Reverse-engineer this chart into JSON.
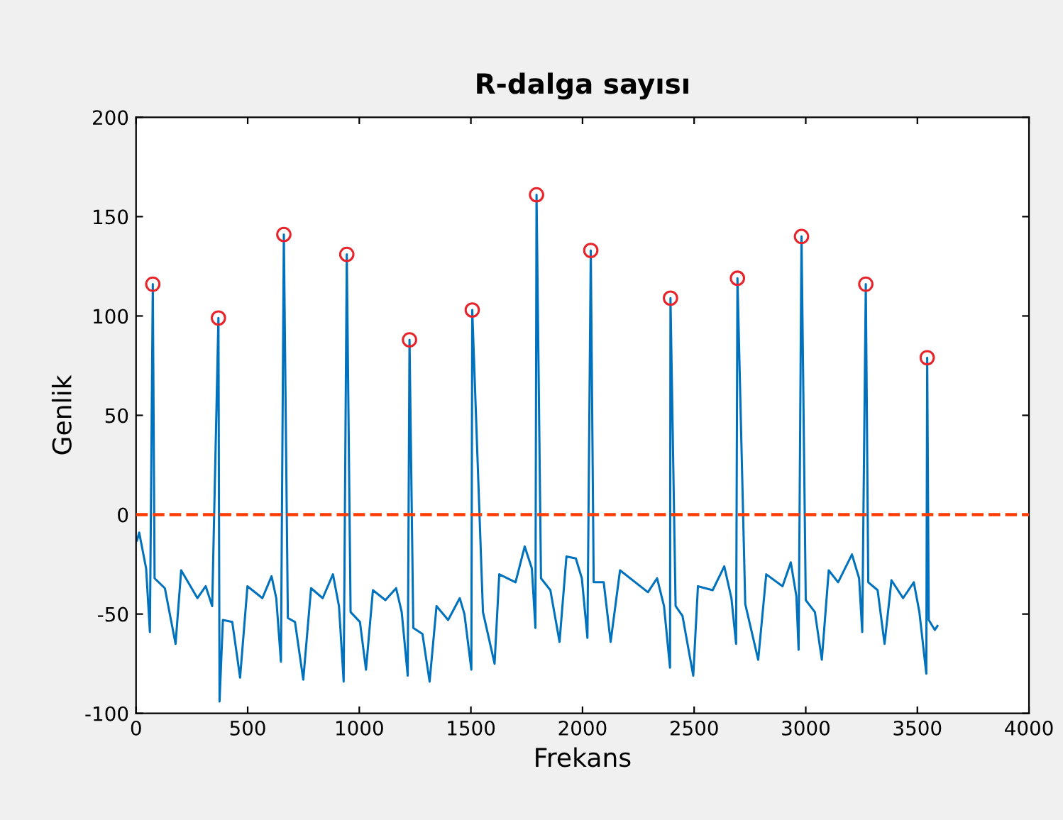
{
  "chart_data": {
    "type": "line",
    "title": "R-dalga sayısı",
    "xlabel": "Frekans",
    "ylabel": "Genlik",
    "xlim": [
      0,
      4000
    ],
    "xticks": [
      0,
      500,
      1000,
      1500,
      2000,
      2500,
      3000,
      3500,
      4000
    ],
    "ylim": [
      -100,
      200
    ],
    "yticks": [
      -100,
      -50,
      0,
      50,
      100,
      150,
      200
    ],
    "grid": false,
    "legend": false,
    "series": [
      {
        "color": "#0072bd",
        "marker": "none",
        "line_style": "solid",
        "x": [
          4,
          14,
          45,
          62,
          75,
          83,
          129,
          177,
          202,
          275,
          312,
          341,
          369,
          374,
          389,
          431,
          466,
          499,
          566,
          607,
          628,
          649,
          662,
          680,
          712,
          749,
          784,
          836,
          882,
          909,
          930,
          944,
          961,
          1003,
          1030,
          1061,
          1117,
          1165,
          1190,
          1217,
          1225,
          1242,
          1283,
          1315,
          1346,
          1398,
          1450,
          1471,
          1502,
          1506,
          1554,
          1606,
          1627,
          1700,
          1741,
          1773,
          1789,
          1794,
          1814,
          1856,
          1897,
          1928,
          1970,
          1997,
          2022,
          2037,
          2050,
          2095,
          2126,
          2168,
          2293,
          2334,
          2365,
          2392,
          2394,
          2417,
          2448,
          2496,
          2517,
          2583,
          2635,
          2667,
          2688,
          2694,
          2729,
          2787,
          2823,
          2896,
          2933,
          2958,
          2968,
          2981,
          3000,
          3041,
          3072,
          3103,
          3145,
          3207,
          3239,
          3253,
          3269,
          3280,
          3322,
          3353,
          3384,
          3436,
          3484,
          3509,
          3540,
          3544,
          3551,
          3578,
          3590
        ],
        "values": [
          -13,
          -9,
          -27,
          -59,
          116,
          -32,
          -37,
          -65,
          -28,
          -42,
          -36,
          -46,
          99,
          -94,
          -53,
          -54,
          -82,
          -36,
          -42,
          -31,
          -42,
          -74,
          141,
          -52,
          -54,
          -83,
          -37,
          -42,
          -30,
          -46,
          -84,
          131,
          -49,
          -54,
          -78,
          -38,
          -43,
          -37,
          -49,
          -81,
          88,
          -57,
          -60,
          -84,
          -46,
          -53,
          -42,
          -50,
          -78,
          103,
          -49,
          -75,
          -30,
          -34,
          -16,
          -27,
          -57,
          161,
          -32,
          -38,
          -64,
          -21,
          -22,
          -32,
          -62,
          133,
          -34,
          -34,
          -64,
          -28,
          -39,
          -32,
          -46,
          -77,
          109,
          -46,
          -51,
          -81,
          -36,
          -38,
          -26,
          -42,
          -65,
          119,
          -45,
          -73,
          -30,
          -36,
          -24,
          -41,
          -68,
          140,
          -43,
          -49,
          -73,
          -28,
          -34,
          -20,
          -32,
          -59,
          116,
          -34,
          -38,
          -65,
          -33,
          -42,
          -34,
          -49,
          -80,
          79,
          -53,
          -58,
          -56
        ]
      },
      {
        "type": "scatter",
        "color": "#e8242b",
        "marker": "circle",
        "x": [
          75,
          369,
          662,
          944,
          1225,
          1506,
          1794,
          2037,
          2394,
          2694,
          2981,
          3269,
          3544
        ],
        "values": [
          116,
          99,
          141,
          131,
          88,
          103,
          161,
          133,
          109,
          119,
          140,
          116,
          79
        ]
      }
    ],
    "ref_lines": [
      {
        "axis": "y",
        "value": 0,
        "color": "#ff3d00",
        "line_style": "dashed"
      }
    ]
  }
}
